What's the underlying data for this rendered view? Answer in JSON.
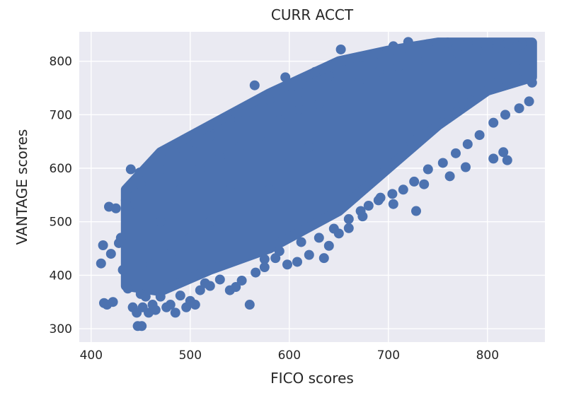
{
  "chart_data": {
    "type": "scatter",
    "title": "CURR ACCT",
    "xlabel": "FICO scores",
    "ylabel": "VANTAGE scores",
    "xlim": [
      388,
      858
    ],
    "ylim": [
      275,
      855
    ],
    "xticks": [
      400,
      500,
      600,
      700,
      800
    ],
    "yticks": [
      300,
      400,
      500,
      600,
      700,
      800
    ],
    "grid": true,
    "background_color": "#EAEAF2",
    "point_color": "#4C72B0",
    "band": {
      "upper": [
        [
          435,
          560
        ],
        [
          470,
          630
        ],
        [
          520,
          680
        ],
        [
          580,
          740
        ],
        [
          650,
          800
        ],
        [
          700,
          820
        ],
        [
          750,
          835
        ],
        [
          845,
          835
        ]
      ],
      "lower": [
        [
          435,
          380
        ],
        [
          470,
          370
        ],
        [
          520,
          410
        ],
        [
          580,
          450
        ],
        [
          650,
          520
        ],
        [
          700,
          600
        ],
        [
          750,
          680
        ],
        [
          800,
          745
        ],
        [
          845,
          770
        ]
      ]
    },
    "points": [
      [
        410,
        422
      ],
      [
        412,
        456
      ],
      [
        413,
        348
      ],
      [
        416,
        345
      ],
      [
        418,
        528
      ],
      [
        420,
        440
      ],
      [
        422,
        350
      ],
      [
        425,
        525
      ],
      [
        428,
        460
      ],
      [
        430,
        470
      ],
      [
        432,
        410
      ],
      [
        435,
        540
      ],
      [
        437,
        375
      ],
      [
        438,
        520
      ],
      [
        440,
        598
      ],
      [
        442,
        340
      ],
      [
        444,
        548
      ],
      [
        446,
        330
      ],
      [
        447,
        305
      ],
      [
        449,
        592
      ],
      [
        450,
        365
      ],
      [
        451,
        305
      ],
      [
        452,
        340
      ],
      [
        455,
        360
      ],
      [
        458,
        330
      ],
      [
        462,
        345
      ],
      [
        465,
        335
      ],
      [
        470,
        360
      ],
      [
        476,
        340
      ],
      [
        480,
        345
      ],
      [
        485,
        330
      ],
      [
        490,
        362
      ],
      [
        496,
        340
      ],
      [
        500,
        352
      ],
      [
        505,
        345
      ],
      [
        510,
        372
      ],
      [
        515,
        385
      ],
      [
        520,
        380
      ],
      [
        530,
        392
      ],
      [
        540,
        372
      ],
      [
        546,
        378
      ],
      [
        552,
        390
      ],
      [
        560,
        345
      ],
      [
        566,
        405
      ],
      [
        575,
        415
      ],
      [
        586,
        432
      ],
      [
        598,
        420
      ],
      [
        608,
        425
      ],
      [
        620,
        438
      ],
      [
        635,
        432
      ],
      [
        640,
        455
      ],
      [
        650,
        478
      ],
      [
        660,
        488
      ],
      [
        672,
        520
      ],
      [
        680,
        530
      ],
      [
        692,
        545
      ],
      [
        704,
        552
      ],
      [
        715,
        560
      ],
      [
        726,
        575
      ],
      [
        740,
        598
      ],
      [
        755,
        610
      ],
      [
        768,
        628
      ],
      [
        780,
        645
      ],
      [
        792,
        662
      ],
      [
        806,
        685
      ],
      [
        818,
        700
      ],
      [
        832,
        712
      ],
      [
        842,
        725
      ],
      [
        845,
        760
      ],
      [
        450,
        570
      ],
      [
        470,
        598
      ],
      [
        492,
        622
      ],
      [
        505,
        648
      ],
      [
        520,
        660
      ],
      [
        528,
        675
      ],
      [
        540,
        690
      ],
      [
        556,
        703
      ],
      [
        565,
        755
      ],
      [
        580,
        728
      ],
      [
        596,
        770
      ],
      [
        610,
        742
      ],
      [
        626,
        780
      ],
      [
        640,
        772
      ],
      [
        652,
        822
      ],
      [
        660,
        800
      ],
      [
        672,
        808
      ],
      [
        690,
        815
      ],
      [
        705,
        828
      ],
      [
        720,
        836
      ],
      [
        740,
        832
      ],
      [
        760,
        835
      ],
      [
        780,
        834
      ],
      [
        800,
        834
      ],
      [
        820,
        833
      ],
      [
        835,
        832
      ],
      [
        816,
        630
      ],
      [
        806,
        618
      ],
      [
        820,
        615
      ],
      [
        778,
        602
      ],
      [
        762,
        585
      ],
      [
        736,
        570
      ],
      [
        728,
        520
      ],
      [
        705,
        533
      ],
      [
        690,
        540
      ],
      [
        674,
        510
      ],
      [
        660,
        505
      ],
      [
        645,
        487
      ],
      [
        630,
        470
      ],
      [
        612,
        462
      ],
      [
        590,
        445
      ],
      [
        575,
        430
      ],
      [
        722,
        655
      ],
      [
        738,
        665
      ],
      [
        760,
        700
      ],
      [
        775,
        720
      ],
      [
        790,
        740
      ],
      [
        810,
        760
      ],
      [
        828,
        790
      ],
      [
        600,
        610
      ],
      [
        620,
        640
      ],
      [
        580,
        560
      ],
      [
        560,
        520
      ],
      [
        540,
        560
      ],
      [
        520,
        500
      ],
      [
        500,
        470
      ],
      [
        480,
        440
      ],
      [
        460,
        420
      ],
      [
        470,
        500
      ],
      [
        490,
        560
      ],
      [
        510,
        600
      ],
      [
        530,
        620
      ],
      [
        550,
        640
      ],
      [
        570,
        660
      ],
      [
        590,
        690
      ],
      [
        610,
        710
      ],
      [
        630,
        720
      ],
      [
        650,
        740
      ],
      [
        670,
        760
      ],
      [
        690,
        780
      ],
      [
        710,
        790
      ],
      [
        730,
        800
      ],
      [
        750,
        810
      ],
      [
        770,
        815
      ],
      [
        790,
        820
      ],
      [
        810,
        825
      ],
      [
        830,
        828
      ]
    ]
  }
}
